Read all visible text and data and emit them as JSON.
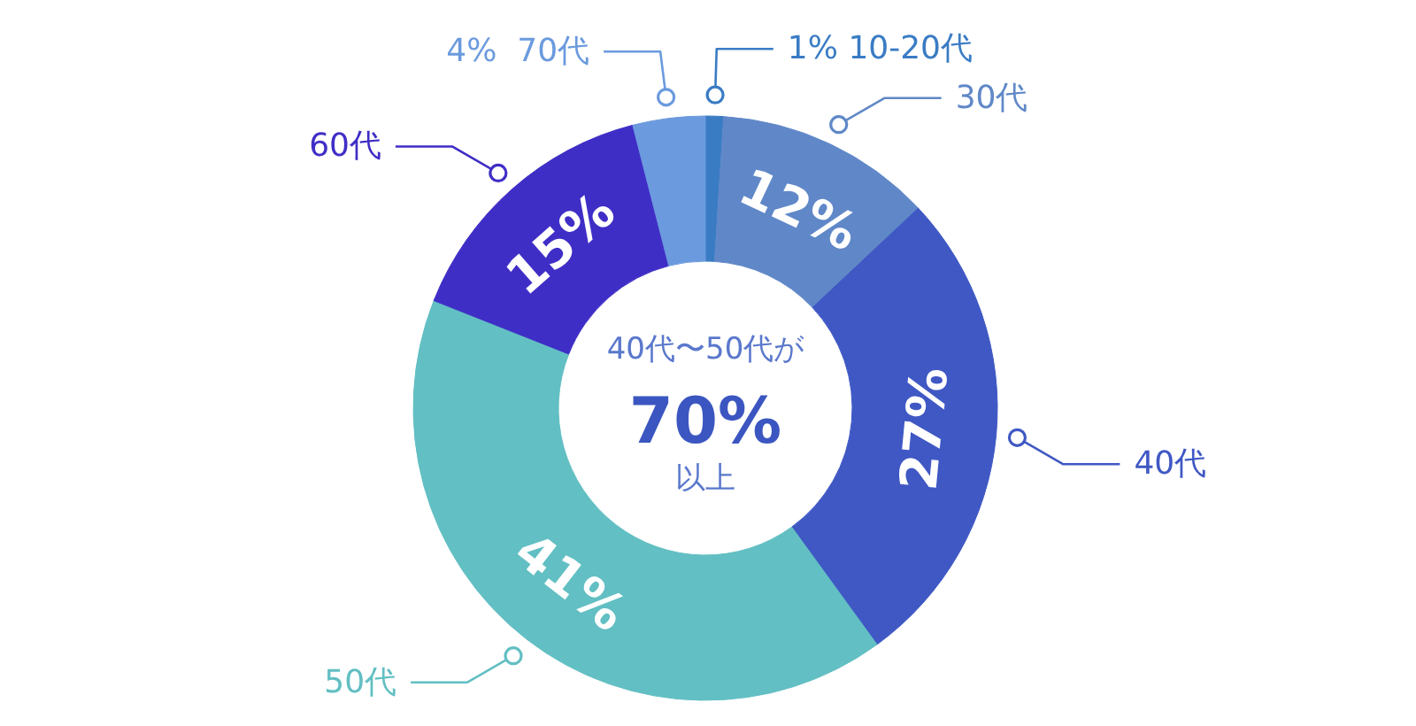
{
  "chart_data": {
    "type": "donut",
    "categories": [
      "10-20代",
      "30代",
      "40代",
      "50代",
      "60代",
      "70代"
    ],
    "values": [
      1,
      12,
      27,
      41,
      15,
      4
    ],
    "colors": [
      "#3a7cc4",
      "#6088c8",
      "#3f58c4",
      "#62bfc3",
      "#3f2ec6",
      "#6b9ade"
    ],
    "value_labels": [
      "1%",
      "12%",
      "27%",
      "41%",
      "15%",
      "4%"
    ],
    "annotations": [
      "40代〜50代が",
      "70%",
      "以上"
    ]
  }
}
